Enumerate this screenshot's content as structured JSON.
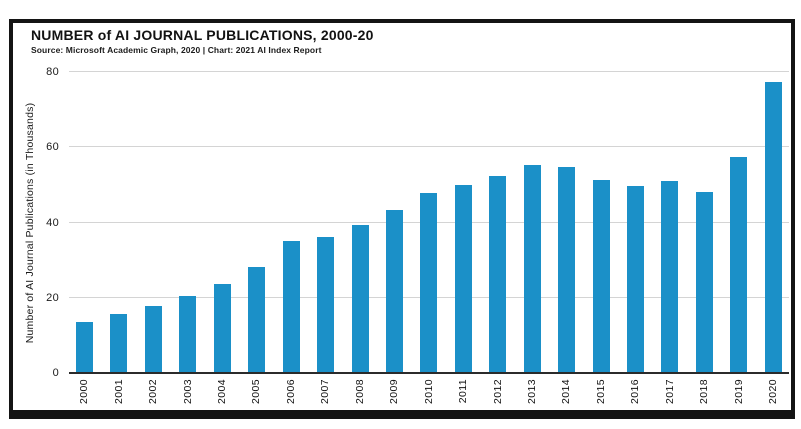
{
  "colors": {
    "bar": "#1b90c8",
    "gridline": "#d4d4d4",
    "axis_line": "#2b2b2b",
    "frame_border": "#141414",
    "text": "#111111"
  },
  "chart_data": {
    "type": "bar",
    "title": "NUMBER of AI JOURNAL PUBLICATIONS, 2000-20",
    "source": "Source: Microsoft Academic Graph, 2020 | Chart: 2021 AI Index Report",
    "ylabel": "Number of AI Journal Publications (in Thousands)",
    "xlabel": "",
    "categories": [
      "2000",
      "2001",
      "2002",
      "2003",
      "2004",
      "2005",
      "2006",
      "2007",
      "2008",
      "2009",
      "2010",
      "2011",
      "2012",
      "2013",
      "2014",
      "2015",
      "2016",
      "2017",
      "2018",
      "2019",
      "2020"
    ],
    "values": [
      13.6,
      15.7,
      17.8,
      20.4,
      23.7,
      28.2,
      35.0,
      36.2,
      39.3,
      43.4,
      47.9,
      50.1,
      52.3,
      55.3,
      54.8,
      51.2,
      49.7,
      51.1,
      48.0,
      57.3,
      77.3
    ],
    "ylim": [
      0,
      80
    ],
    "yticks": [
      0,
      20,
      40,
      60,
      80
    ],
    "grid": true,
    "legend": null
  }
}
